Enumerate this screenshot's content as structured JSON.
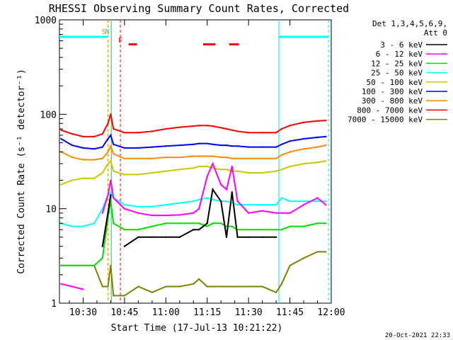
{
  "chart_data": {
    "type": "line",
    "title": "RHESSI Observing Summary Count Rates, Corrected",
    "xlabel": "Start Time (17-Jul-13 10:21:22)",
    "ylabel": "Corrected Count Rate (s⁻¹ detector⁻¹)",
    "yscale": "log",
    "ylim": [
      1,
      1000
    ],
    "xlim_minutes": [
      21.4,
      120
    ],
    "x_ticks": [
      "10:30",
      "10:45",
      "11:00",
      "11:15",
      "11:30",
      "11:45",
      "12:00"
    ],
    "x_tick_minutes": [
      30,
      45,
      60,
      75,
      90,
      105,
      120
    ],
    "y_ticks": [
      "1",
      "10",
      "100",
      "1000"
    ],
    "y_tick_values": [
      1,
      10,
      100,
      1000
    ],
    "legend_header": [
      "Det 1,3,4,5,6,9,",
      "Att 0"
    ],
    "legend_position": "right",
    "markers": [
      {
        "label": "S",
        "minute": 39.0,
        "color": "#ff8c00"
      },
      {
        "label": "N",
        "minute": 40.2,
        "color": "#00e5ee"
      },
      {
        "label": "F",
        "minute": 43.5,
        "color": "#ff0000"
      }
    ],
    "attenuator_level_value": 660,
    "attenuator_segments_minutes": [
      [
        21.4,
        39.0
      ],
      [
        101.0,
        119.0
      ]
    ],
    "night_segments_minutes": [
      [
        40.2,
        101.0
      ]
    ],
    "flare_segments_minutes": [
      [
        46.5,
        49.5
      ],
      [
        73.5,
        78.0
      ],
      [
        83.0,
        86.5
      ]
    ],
    "flare_level_value": 550,
    "x_minutes": [
      22,
      26,
      30,
      34,
      37,
      39,
      40,
      41,
      45,
      50,
      55,
      60,
      65,
      70,
      72,
      75,
      77,
      80,
      82,
      84,
      86,
      90,
      95,
      100,
      102,
      105,
      110,
      115,
      118
    ],
    "series": [
      {
        "name": "3 - 6 keV",
        "color": "#000000",
        "values": [
          null,
          null,
          null,
          null,
          4,
          9,
          14,
          null,
          4,
          5,
          5,
          5,
          5,
          6,
          6,
          7,
          16,
          12,
          5,
          15,
          5,
          5,
          5,
          5,
          null,
          null,
          null,
          null,
          null
        ]
      },
      {
        "name": "6 - 12 keV",
        "color": "#ff00ff",
        "values": [
          1.6,
          1.5,
          1.4,
          null,
          9,
          14,
          20,
          13,
          10,
          9,
          8.5,
          8.5,
          8.6,
          9,
          10,
          22,
          30,
          18,
          16,
          28,
          12,
          9,
          9.5,
          9,
          9,
          9,
          11,
          13,
          11
        ]
      },
      {
        "name": "12 - 25 keV",
        "color": "#00e000",
        "values": [
          2.5,
          2.5,
          2.5,
          2.5,
          3,
          8,
          12,
          7,
          6,
          6,
          6.5,
          7,
          7,
          7,
          7,
          6.5,
          7,
          7,
          6.5,
          6.5,
          6,
          6,
          6,
          6,
          6,
          6.5,
          6.5,
          7,
          7
        ]
      },
      {
        "name": "25 - 50 keV",
        "color": "#00ffff",
        "values": [
          7,
          6.5,
          6.5,
          7,
          10,
          14,
          15,
          13,
          11,
          10.5,
          10.5,
          11,
          11.5,
          12,
          12.5,
          13,
          12.5,
          12,
          12,
          11.5,
          11,
          11,
          11,
          11,
          13,
          12,
          12,
          12,
          12
        ]
      },
      {
        "name": "50 - 100 keV",
        "color": "#c8c800",
        "values": [
          18,
          20,
          21,
          21,
          24,
          30,
          32,
          25,
          23,
          23,
          24,
          25,
          26,
          27,
          28,
          28,
          27,
          26,
          26,
          25,
          25,
          24,
          24,
          25,
          26,
          28,
          30,
          31,
          32
        ]
      },
      {
        "name": "100 - 300 keV",
        "color": "#0000ff",
        "values": [
          55,
          47,
          44,
          43,
          45,
          55,
          60,
          48,
          44,
          44,
          45,
          46,
          47,
          48,
          49,
          49,
          48,
          47,
          47,
          46,
          46,
          45,
          45,
          45,
          48,
          52,
          55,
          57,
          58
        ]
      },
      {
        "name": "300 - 800 keV",
        "color": "#ff8c00",
        "values": [
          40,
          35,
          33,
          33,
          34,
          40,
          46,
          38,
          34,
          34,
          34,
          35,
          35,
          36,
          36,
          36,
          36,
          35,
          35,
          34,
          34,
          34,
          34,
          34,
          37,
          40,
          43,
          45,
          47
        ]
      },
      {
        "name": "800 - 7000 keV",
        "color": "#ff0000",
        "values": [
          68,
          62,
          58,
          58,
          62,
          80,
          100,
          70,
          64,
          64,
          66,
          70,
          73,
          75,
          76,
          76,
          75,
          72,
          70,
          68,
          66,
          64,
          64,
          64,
          70,
          76,
          82,
          85,
          86
        ]
      },
      {
        "name": "7000 - 15000 keV",
        "color": "#808000",
        "values": [
          2.5,
          2.5,
          2.5,
          2.5,
          1.5,
          1.5,
          2.5,
          1.2,
          1.2,
          1.5,
          1.3,
          1.5,
          1.5,
          1.6,
          1.8,
          1.5,
          1.5,
          1.5,
          1.5,
          1.5,
          1.5,
          1.5,
          1.5,
          1.3,
          1.6,
          2.5,
          3,
          3.5,
          3.5
        ]
      }
    ]
  },
  "footer_date": "20-Oct-2021 22:33"
}
